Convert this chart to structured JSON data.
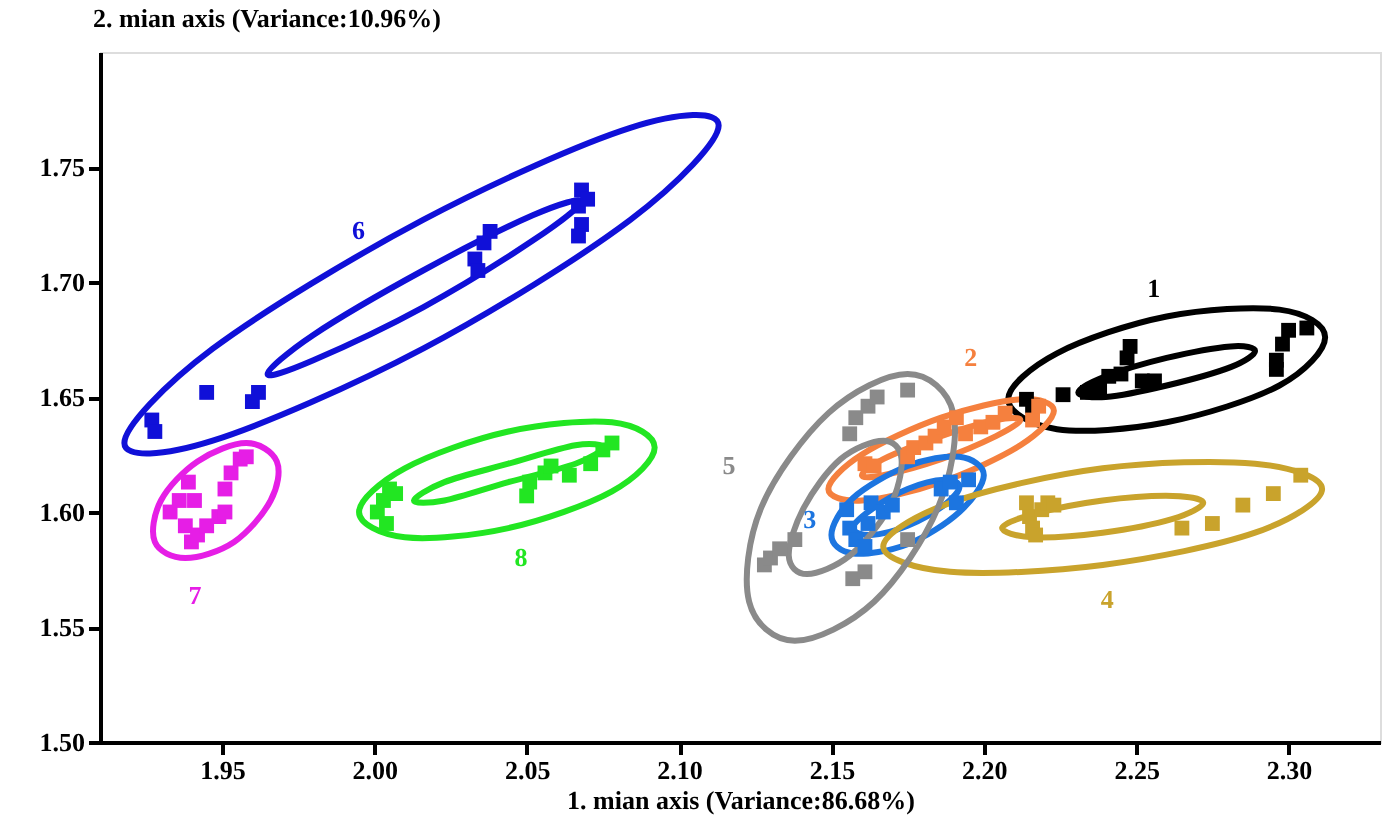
{
  "chart_data": {
    "type": "scatter",
    "xlabel": "1. mian axis (Variance:86.68%)",
    "ylabel": "2. mian axis (Variance:10.96%)",
    "xlim": [
      1.91,
      2.33
    ],
    "ylim": [
      1.5,
      1.8
    ],
    "xticks": [
      1.95,
      {
        "value": 2.0,
        "label": "2.00"
      },
      2.05,
      {
        "value": 2.1,
        "label": "2.10"
      },
      2.15,
      {
        "value": 2.2,
        "label": "2.20"
      },
      2.25,
      {
        "value": 2.3,
        "label": "2.30"
      }
    ],
    "yticks": [
      {
        "value": 1.5,
        "label": "1.50"
      },
      1.55,
      {
        "value": 1.6,
        "label": "1.60"
      },
      1.65,
      {
        "value": 1.7,
        "label": "1.70"
      },
      1.75
    ],
    "grid": false,
    "marker": "square",
    "series": [
      {
        "name": "1",
        "color": "#000000",
        "x": [
          2.214,
          2.216,
          2.226,
          2.234,
          2.238,
          2.241,
          2.245,
          2.247,
          2.248,
          2.252,
          2.256,
          2.296,
          2.296,
          2.298,
          2.306,
          2.3
        ],
        "values": [
          1.649,
          1.646,
          1.651,
          1.652,
          1.654,
          1.659,
          1.66,
          1.667,
          1.672,
          1.657,
          1.657,
          1.662,
          1.666,
          1.673,
          1.68,
          1.679
        ]
      },
      {
        "name": "2",
        "color": "#f5803e",
        "x": [
          2.161,
          2.164,
          2.175,
          2.177,
          2.181,
          2.184,
          2.187,
          2.191,
          2.194,
          2.199,
          2.203,
          2.207,
          2.216,
          2.218
        ],
        "values": [
          1.621,
          1.62,
          1.624,
          1.628,
          1.63,
          1.633,
          1.637,
          1.641,
          1.634,
          1.637,
          1.639,
          1.643,
          1.64,
          1.646
        ]
      },
      {
        "name": "3",
        "color": "#1c75e0",
        "x": [
          2.155,
          2.156,
          2.158,
          2.161,
          2.162,
          2.163,
          2.167,
          2.17,
          2.186,
          2.189,
          2.191,
          2.195
        ],
        "values": [
          1.601,
          1.593,
          1.588,
          1.585,
          1.595,
          1.604,
          1.6,
          1.603,
          1.61,
          1.613,
          1.604,
          1.614
        ]
      },
      {
        "name": "4",
        "color": "#c9a32c",
        "x": [
          2.214,
          2.215,
          2.216,
          2.217,
          2.219,
          2.221,
          2.223,
          2.265,
          2.275,
          2.285,
          2.295,
          2.304
        ],
        "values": [
          1.604,
          1.598,
          1.593,
          1.59,
          1.601,
          1.604,
          1.603,
          1.593,
          1.595,
          1.603,
          1.608,
          1.616
        ]
      },
      {
        "name": "5",
        "color": "#8a8a8a",
        "x": [
          2.128,
          2.13,
          2.133,
          2.138,
          2.157,
          2.161,
          2.175,
          2.156,
          2.158,
          2.162,
          2.165,
          2.175
        ],
        "values": [
          1.577,
          1.58,
          1.584,
          1.588,
          1.571,
          1.574,
          1.588,
          1.634,
          1.641,
          1.646,
          1.65,
          1.653
        ]
      },
      {
        "name": "6",
        "color": "#1010d8",
        "x": [
          1.927,
          1.928,
          1.945,
          1.96,
          1.962,
          2.033,
          2.034,
          2.036,
          2.038,
          2.067,
          2.068,
          2.07,
          2.068,
          2.067
        ],
        "values": [
          1.64,
          1.635,
          1.652,
          1.648,
          1.652,
          1.71,
          1.705,
          1.717,
          1.722,
          1.733,
          1.74,
          1.736,
          1.725,
          1.72
        ]
      },
      {
        "name": "7",
        "color": "#e61ee6",
        "x": [
          1.933,
          1.936,
          1.939,
          1.941,
          1.938,
          1.94,
          1.942,
          1.945,
          1.949,
          1.951,
          1.953,
          1.956,
          1.958,
          1.951
        ],
        "values": [
          1.6,
          1.605,
          1.613,
          1.605,
          1.594,
          1.587,
          1.59,
          1.594,
          1.598,
          1.61,
          1.617,
          1.623,
          1.624,
          1.6
        ]
      },
      {
        "name": "8",
        "color": "#22e622",
        "x": [
          2.001,
          2.003,
          2.005,
          2.007,
          2.004,
          2.05,
          2.051,
          2.056,
          2.058,
          2.064,
          2.071,
          2.075,
          2.078
        ],
        "values": [
          1.6,
          1.605,
          1.61,
          1.608,
          1.595,
          1.607,
          1.613,
          1.617,
          1.62,
          1.616,
          1.621,
          1.627,
          1.63
        ]
      }
    ]
  }
}
